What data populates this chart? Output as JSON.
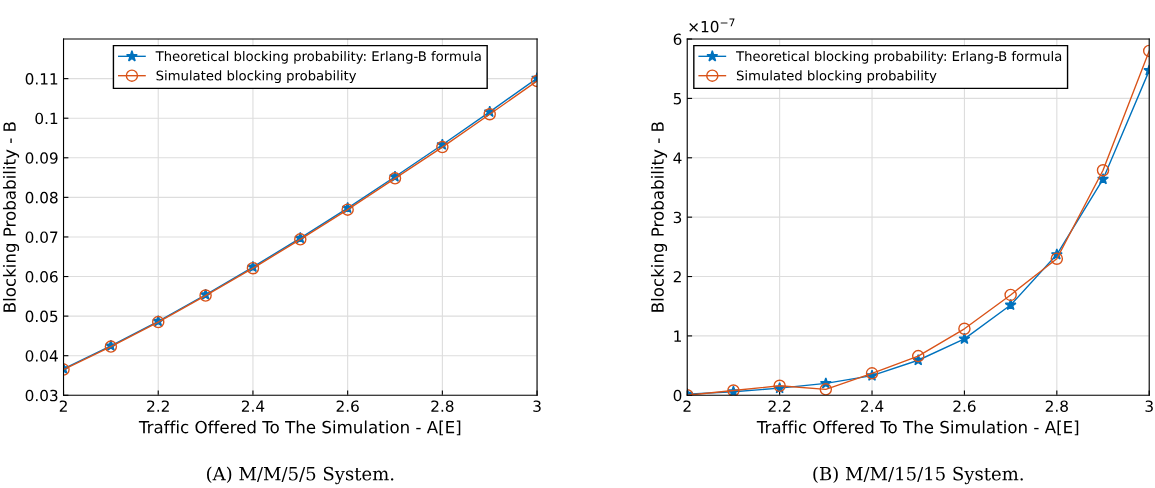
{
  "chart_data": [
    {
      "type": "line",
      "x": [
        2,
        2.1,
        2.2,
        2.3,
        2.4,
        2.5,
        2.6,
        2.7,
        2.8,
        2.9,
        3
      ],
      "series": [
        {
          "name": "Theoretical blocking probability: Erlang-B formula",
          "color": "#0072bd",
          "marker": "star",
          "values": [
            0.0367,
            0.0425,
            0.0487,
            0.0554,
            0.0624,
            0.0697,
            0.0773,
            0.0852,
            0.0933,
            0.1016,
            0.1101
          ]
        },
        {
          "name": "Simulated blocking probability",
          "color": "#d95319",
          "marker": "circle",
          "values": [
            0.0365,
            0.0423,
            0.0485,
            0.0552,
            0.0621,
            0.0694,
            0.0769,
            0.0848,
            0.0927,
            0.101,
            0.1094
          ]
        }
      ],
      "xlabel": "Traffic Offered To The Simulation - A[E]",
      "ylabel": "Blocking Probability - B",
      "xlim": [
        2,
        3
      ],
      "xticks": [
        2,
        2.2,
        2.4,
        2.6,
        2.8,
        3
      ],
      "ylim": [
        0.03,
        0.12
      ],
      "yticks": [
        0.03,
        0.04,
        0.05,
        0.06,
        0.07,
        0.08,
        0.09,
        0.1,
        0.11
      ],
      "grid": true,
      "legend": "top",
      "line_style": "solid",
      "annotations": [
        "(A) M/M/5/5 System."
      ]
    },
    {
      "type": "line",
      "x": [
        2,
        2.1,
        2.2,
        2.3,
        2.4,
        2.5,
        2.6,
        2.7,
        2.8,
        2.9,
        3
      ],
      "series": [
        {
          "name": "Theoretical blocking probability: Erlang-B formula",
          "color": "#0072bd",
          "marker": "star",
          "values": [
            0.02,
            0.06,
            0.12,
            0.2,
            0.33,
            0.59,
            0.95,
            1.52,
            2.37,
            3.64,
            5.47
          ]
        },
        {
          "name": "Simulated blocking probability",
          "color": "#d95319",
          "marker": "circle",
          "values": [
            0.0,
            0.08,
            0.16,
            0.1,
            0.37,
            0.66,
            1.12,
            1.69,
            2.3,
            3.79,
            5.8
          ]
        }
      ],
      "xlabel": "Traffic Offered To The Simulation - A[E]",
      "ylabel": "Blocking Probability - B",
      "xlim": [
        2,
        3
      ],
      "xticks": [
        2,
        2.2,
        2.4,
        2.6,
        2.8,
        3
      ],
      "ylim": [
        0,
        6
      ],
      "yticks": [
        0,
        1,
        2,
        3,
        4,
        5,
        6
      ],
      "grid": true,
      "legend": "top left",
      "line_style": "solid",
      "annotations": [
        "×10$^{−7}$",
        "(B) M/M/15/15 System."
      ]
    }
  ]
}
